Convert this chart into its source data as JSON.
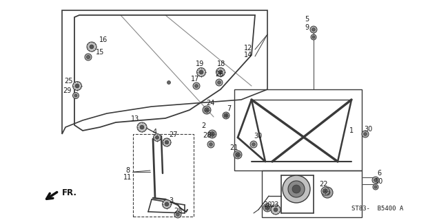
{
  "background_color": "#ffffff",
  "line_color": "#3a3a3a",
  "text_color": "#1a1a1a",
  "diagram_code": "ST83-  B5400 A",
  "figsize": [
    6.37,
    3.2
  ],
  "dpi": 100
}
